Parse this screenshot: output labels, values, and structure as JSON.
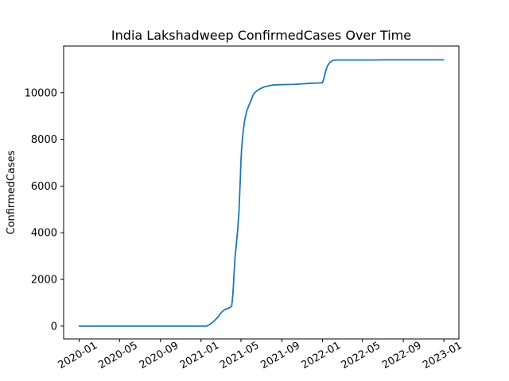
{
  "chart_data": {
    "type": "line",
    "title": "India Lakshadweep ConfirmedCases Over Time",
    "xlabel": "",
    "ylabel": "ConfirmedCases",
    "xlim": [
      "2019-11-15",
      "2023-02-15"
    ],
    "ylim": [
      -550,
      12000
    ],
    "grid": false,
    "x_ticks": [
      "2020-01",
      "2020-05",
      "2020-09",
      "2021-01",
      "2021-05",
      "2021-09",
      "2022-01",
      "2022-05",
      "2022-09",
      "2023-01"
    ],
    "y_ticks": [
      0,
      2000,
      4000,
      6000,
      8000,
      10000
    ],
    "series": [
      {
        "color": "#1f77b4",
        "x": [
          "2020-01-01",
          "2020-06-01",
          "2020-12-01",
          "2021-01-18",
          "2021-01-25",
          "2021-02-01",
          "2021-02-08",
          "2021-02-15",
          "2021-02-22",
          "2021-03-01",
          "2021-03-08",
          "2021-03-15",
          "2021-03-22",
          "2021-03-29",
          "2021-04-03",
          "2021-04-07",
          "2021-04-10",
          "2021-04-13",
          "2021-04-17",
          "2021-04-21",
          "2021-04-25",
          "2021-04-29",
          "2021-05-01",
          "2021-05-03",
          "2021-05-06",
          "2021-05-09",
          "2021-05-12",
          "2021-05-15",
          "2021-05-18",
          "2021-05-22",
          "2021-05-26",
          "2021-06-01",
          "2021-06-08",
          "2021-06-15",
          "2021-06-25",
          "2021-07-10",
          "2021-07-25",
          "2021-08-05",
          "2021-08-20",
          "2021-09-10",
          "2021-10-10",
          "2021-11-01",
          "2021-11-20",
          "2021-12-10",
          "2021-12-28",
          "2022-01-01",
          "2022-01-05",
          "2022-01-10",
          "2022-01-16",
          "2022-01-23",
          "2022-02-01",
          "2022-02-10",
          "2022-02-25",
          "2022-04-01",
          "2022-06-01",
          "2022-07-01",
          "2022-09-01",
          "2022-12-31"
        ],
        "y": [
          0,
          0,
          0,
          0,
          50,
          120,
          200,
          300,
          400,
          550,
          650,
          720,
          750,
          800,
          850,
          1400,
          2200,
          2900,
          3500,
          4100,
          4900,
          6300,
          7100,
          7600,
          8100,
          8500,
          8800,
          9000,
          9200,
          9350,
          9500,
          9700,
          9950,
          10050,
          10150,
          10250,
          10300,
          10330,
          10340,
          10350,
          10360,
          10380,
          10400,
          10410,
          10420,
          10430,
          10600,
          10900,
          11150,
          11300,
          11380,
          11400,
          11400,
          11400,
          11400,
          11410,
          11410,
          11410
        ]
      }
    ]
  }
}
